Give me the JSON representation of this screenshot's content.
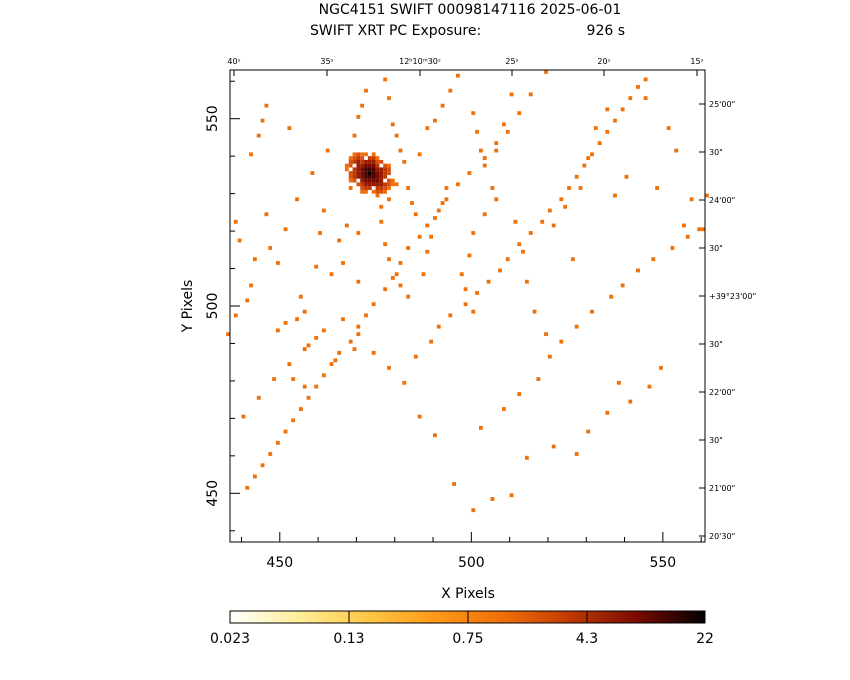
{
  "header": {
    "title": "NGC4151 SWIFT 00098147116 2025-06-01",
    "subtitle_left": "SWIFT XRT PC Exposure:",
    "subtitle_right": "926 s"
  },
  "chart_data": {
    "type": "heatmap",
    "xlabel": "X Pixels",
    "ylabel": "Y Pixels",
    "xlim": [
      437,
      561
    ],
    "ylim": [
      437,
      563
    ],
    "x_ticks": [
      450,
      500,
      550
    ],
    "y_ticks": [
      450,
      500,
      550
    ],
    "x_tick_labels": [
      "450",
      "500",
      "550"
    ],
    "y_tick_labels": [
      "450",
      "500",
      "550"
    ],
    "ra_tick_labels": [
      "40ˢ",
      "35ˢ",
      "12ʰ10ᵐ30ˢ",
      "25ˢ",
      "20ˢ",
      "15ˢ"
    ],
    "dec_tick_labels": [
      "25'00\"",
      "30\"",
      "24'00\"",
      "30\"",
      "+39°23'00\"",
      "30\"",
      "22'00\"",
      "30\"",
      "21'00\"",
      "20'30\""
    ],
    "colorbar": {
      "tick_labels": [
        "0.023",
        "0.13",
        "0.75",
        "4.3",
        "22"
      ],
      "min": 0.023,
      "max": 22,
      "scale": "log",
      "colors": [
        "#ffffff",
        "#ffef9a",
        "#ffc848",
        "#ff9a18",
        "#f07008",
        "#c03a00",
        "#780a00",
        "#000000"
      ]
    },
    "source": {
      "x": 473,
      "y": 535,
      "peak_value": 22
    },
    "events": [
      [
        443,
        512
      ],
      [
        447,
        515
      ],
      [
        438,
        522
      ],
      [
        442,
        540
      ],
      [
        444,
        545
      ],
      [
        445,
        549
      ],
      [
        446,
        553
      ],
      [
        451,
        520
      ],
      [
        449,
        511
      ],
      [
        452,
        547
      ],
      [
        446,
        524
      ],
      [
        439,
        517
      ],
      [
        455,
        502
      ],
      [
        456,
        498
      ],
      [
        454,
        496
      ],
      [
        454,
        528
      ],
      [
        461,
        525
      ],
      [
        458,
        535
      ],
      [
        462,
        541
      ],
      [
        460,
        519
      ],
      [
        459,
        510
      ],
      [
        466,
        511
      ],
      [
        465,
        517
      ],
      [
        467,
        521
      ],
      [
        470,
        519
      ],
      [
        468,
        531
      ],
      [
        469,
        545
      ],
      [
        470,
        550
      ],
      [
        471,
        553
      ],
      [
        472,
        557
      ],
      [
        464,
        485
      ],
      [
        461,
        493
      ],
      [
        463,
        508
      ],
      [
        470,
        506
      ],
      [
        469,
        488
      ],
      [
        457,
        489
      ],
      [
        456,
        478
      ],
      [
        453,
        480
      ],
      [
        449,
        493
      ],
      [
        451,
        495
      ],
      [
        477,
        560
      ],
      [
        478,
        555
      ],
      [
        479,
        548
      ],
      [
        480,
        545
      ],
      [
        481,
        541
      ],
      [
        482,
        538
      ],
      [
        483,
        531
      ],
      [
        484,
        527
      ],
      [
        485,
        524
      ],
      [
        480,
        532
      ],
      [
        478,
        528
      ],
      [
        476,
        526
      ],
      [
        476,
        522
      ],
      [
        477,
        516
      ],
      [
        478,
        512
      ],
      [
        480,
        508
      ],
      [
        481,
        505
      ],
      [
        483,
        502
      ],
      [
        487,
        508
      ],
      [
        488,
        514
      ],
      [
        489,
        518
      ],
      [
        490,
        523
      ],
      [
        492,
        527
      ],
      [
        493,
        531
      ],
      [
        486,
        540
      ],
      [
        488,
        547
      ],
      [
        490,
        549
      ],
      [
        492,
        553
      ],
      [
        494,
        557
      ],
      [
        496,
        561
      ],
      [
        500,
        551
      ],
      [
        501,
        546
      ],
      [
        502,
        541
      ],
      [
        503,
        537
      ],
      [
        505,
        531
      ],
      [
        506,
        528
      ],
      [
        503,
        524
      ],
      [
        500,
        519
      ],
      [
        499,
        513
      ],
      [
        497,
        508
      ],
      [
        498,
        504
      ],
      [
        500,
        498
      ],
      [
        506,
        541
      ],
      [
        508,
        548
      ],
      [
        510,
        556
      ],
      [
        511,
        522
      ],
      [
        513,
        514
      ],
      [
        514,
        506
      ],
      [
        516,
        498
      ],
      [
        519,
        492
      ],
      [
        521,
        521
      ],
      [
        524,
        526
      ],
      [
        526,
        512
      ],
      [
        528,
        531
      ],
      [
        530,
        539
      ],
      [
        532,
        547
      ],
      [
        535,
        552
      ],
      [
        537,
        529
      ],
      [
        540,
        534
      ],
      [
        545,
        555
      ],
      [
        548,
        531
      ],
      [
        551,
        547
      ],
      [
        553,
        541
      ],
      [
        555,
        521
      ],
      [
        557,
        528
      ],
      [
        560,
        520
      ],
      [
        561,
        529
      ],
      [
        549,
        483
      ],
      [
        546,
        478
      ],
      [
        541,
        474
      ],
      [
        538,
        479
      ],
      [
        535,
        471
      ],
      [
        530,
        466
      ],
      [
        527,
        460
      ],
      [
        521,
        462
      ],
      [
        514,
        459
      ],
      [
        510,
        449
      ],
      [
        505,
        448
      ],
      [
        500,
        445
      ],
      [
        495,
        452
      ],
      [
        490,
        465
      ],
      [
        486,
        470
      ],
      [
        482,
        479
      ],
      [
        478,
        483
      ],
      [
        474,
        487
      ],
      [
        470,
        492
      ],
      [
        466,
        496
      ],
      [
        502,
        467
      ],
      [
        508,
        472
      ],
      [
        512,
        476
      ],
      [
        517,
        480
      ],
      [
        520,
        486
      ],
      [
        523,
        490
      ],
      [
        527,
        494
      ],
      [
        531,
        498
      ],
      [
        536,
        502
      ],
      [
        539,
        505
      ],
      [
        543,
        509
      ],
      [
        547,
        512
      ],
      [
        552,
        515
      ],
      [
        556,
        518
      ],
      [
        559,
        520
      ],
      [
        440,
        470
      ],
      [
        444,
        475
      ],
      [
        448,
        480
      ],
      [
        452,
        484
      ],
      [
        456,
        488
      ],
      [
        459,
        491
      ],
      [
        436,
        492
      ],
      [
        438,
        497
      ],
      [
        441,
        501
      ],
      [
        442,
        505
      ],
      [
        485,
        486
      ],
      [
        489,
        490
      ],
      [
        491,
        494
      ],
      [
        494,
        497
      ],
      [
        498,
        500
      ],
      [
        501,
        503
      ],
      [
        504,
        506
      ],
      [
        507,
        509
      ],
      [
        509,
        512
      ],
      [
        512,
        516
      ],
      [
        515,
        519
      ],
      [
        518,
        522
      ],
      [
        520,
        525
      ],
      [
        523,
        528
      ],
      [
        525,
        531
      ],
      [
        527,
        534
      ],
      [
        529,
        537
      ],
      [
        531,
        540
      ],
      [
        533,
        543
      ],
      [
        535,
        546
      ],
      [
        537,
        549
      ],
      [
        539,
        552
      ],
      [
        541,
        555
      ],
      [
        543,
        558
      ],
      [
        545,
        560
      ],
      [
        519,
        562
      ],
      [
        515,
        556
      ],
      [
        512,
        551
      ],
      [
        509,
        546
      ],
      [
        506,
        543
      ],
      [
        503,
        539
      ],
      [
        499,
        535
      ],
      [
        496,
        532
      ],
      [
        493,
        528
      ],
      [
        491,
        525
      ],
      [
        488,
        521
      ],
      [
        486,
        518
      ],
      [
        483,
        515
      ],
      [
        481,
        511
      ],
      [
        479,
        507
      ],
      [
        477,
        504
      ],
      [
        474,
        500
      ],
      [
        472,
        497
      ],
      [
        470,
        494
      ],
      [
        468,
        490
      ],
      [
        465,
        487
      ],
      [
        463,
        484
      ],
      [
        461,
        481
      ],
      [
        459,
        478
      ],
      [
        457,
        475
      ],
      [
        455,
        472
      ],
      [
        453,
        469
      ],
      [
        451,
        466
      ],
      [
        449,
        463
      ],
      [
        447,
        460
      ],
      [
        445,
        457
      ],
      [
        443,
        454
      ],
      [
        441,
        451
      ]
    ]
  }
}
